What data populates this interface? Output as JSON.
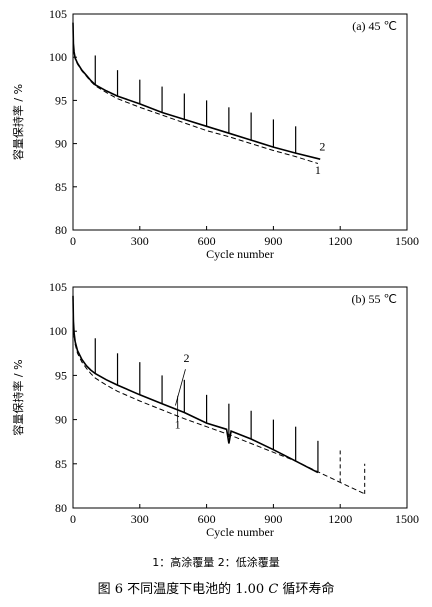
{
  "chart_data": [
    {
      "type": "line",
      "title": "(a) 45 ℃",
      "xlabel": "Cycle number",
      "ylabel": "容量保持率 / %",
      "xlim": [
        0,
        1500
      ],
      "ylim": [
        80,
        105
      ],
      "x_ticks": [
        "0",
        "300",
        "600",
        "900",
        "1200",
        "1500"
      ],
      "y_ticks": [
        "80",
        "85",
        "90",
        "95",
        "100",
        "105"
      ],
      "series": [
        {
          "name": "1",
          "style": "dashed",
          "x": [
            0,
            2,
            5,
            10,
            20,
            40,
            60,
            80,
            100,
            150,
            200,
            300,
            400,
            500,
            600,
            700,
            800,
            900,
            1000,
            1100
          ],
          "y": [
            104.0,
            101.5,
            100.5,
            99.8,
            99.2,
            98.4,
            97.8,
            97.2,
            96.7,
            95.9,
            95.2,
            94.2,
            93.3,
            92.4,
            91.5,
            90.8,
            90.0,
            89.2,
            88.5,
            87.7
          ]
        },
        {
          "name": "2",
          "style": "solid",
          "x": [
            0,
            2,
            5,
            10,
            20,
            40,
            60,
            80,
            100,
            150,
            200,
            300,
            400,
            500,
            600,
            700,
            800,
            900,
            1000,
            1110
          ],
          "y": [
            104.0,
            101.6,
            100.6,
            99.9,
            99.3,
            98.5,
            97.9,
            97.3,
            96.8,
            96.1,
            95.5,
            94.6,
            93.6,
            92.8,
            92.0,
            91.2,
            90.4,
            89.6,
            88.9,
            88.2
          ]
        }
      ],
      "spikes": [
        {
          "x": 100,
          "from": 96.8,
          "to": 100.2
        },
        {
          "x": 200,
          "from": 95.5,
          "to": 98.5
        },
        {
          "x": 300,
          "from": 94.6,
          "to": 97.4
        },
        {
          "x": 400,
          "from": 93.6,
          "to": 96.6
        },
        {
          "x": 500,
          "from": 92.8,
          "to": 95.8
        },
        {
          "x": 600,
          "from": 92.0,
          "to": 95.0
        },
        {
          "x": 700,
          "from": 91.2,
          "to": 94.2
        },
        {
          "x": 800,
          "from": 90.4,
          "to": 93.6
        },
        {
          "x": 900,
          "from": 89.6,
          "to": 92.8
        },
        {
          "x": 1000,
          "from": 88.9,
          "to": 92.0
        }
      ],
      "labels": [
        {
          "text": "1",
          "x": 1100,
          "y": 86.5
        },
        {
          "text": "2",
          "x": 1120,
          "y": 89.2
        }
      ]
    },
    {
      "type": "line",
      "title": "(b) 55 ℃",
      "xlabel": "Cycle number",
      "ylabel": "容量保持率 / %",
      "xlim": [
        0,
        1500
      ],
      "ylim": [
        80,
        105
      ],
      "x_ticks": [
        "0",
        "300",
        "600",
        "900",
        "1200",
        "1500"
      ],
      "y_ticks": [
        "80",
        "85",
        "90",
        "95",
        "100",
        "105"
      ],
      "series": [
        {
          "name": "1",
          "style": "dashed",
          "x": [
            0,
            2,
            5,
            10,
            20,
            40,
            60,
            80,
            100,
            150,
            200,
            300,
            400,
            500,
            600,
            700,
            800,
            900,
            1000,
            1100,
            1200,
            1310
          ],
          "y": [
            104.0,
            101.0,
            99.5,
            98.5,
            97.5,
            96.5,
            95.8,
            95.2,
            94.7,
            93.9,
            93.2,
            92.1,
            91.1,
            90.1,
            89.2,
            88.3,
            87.3,
            86.3,
            85.3,
            84.1,
            82.9,
            81.6
          ]
        },
        {
          "name": "2",
          "style": "solid",
          "x": [
            0,
            2,
            5,
            10,
            20,
            40,
            60,
            80,
            100,
            150,
            200,
            300,
            400,
            500,
            600,
            690,
            700,
            710,
            800,
            900,
            1000,
            1100
          ],
          "y": [
            104.0,
            101.2,
            99.8,
            98.8,
            97.8,
            96.8,
            96.1,
            95.6,
            95.2,
            94.5,
            93.9,
            92.8,
            91.8,
            90.8,
            89.6,
            88.9,
            87.3,
            88.7,
            87.8,
            86.6,
            85.3,
            84.0
          ]
        }
      ],
      "spikes": [
        {
          "x": 100,
          "from": 95.2,
          "to": 99.2
        },
        {
          "x": 200,
          "from": 93.9,
          "to": 97.5
        },
        {
          "x": 300,
          "from": 92.8,
          "to": 96.5
        },
        {
          "x": 400,
          "from": 91.8,
          "to": 95.0
        },
        {
          "x": 500,
          "from": 90.8,
          "to": 94.5
        },
        {
          "x": 600,
          "from": 89.6,
          "to": 92.8
        },
        {
          "x": 700,
          "from": 88.0,
          "to": 91.8
        },
        {
          "x": 800,
          "from": 87.8,
          "to": 91.0
        },
        {
          "x": 900,
          "from": 86.6,
          "to": 90.0
        },
        {
          "x": 1000,
          "from": 85.3,
          "to": 89.2
        },
        {
          "x": 1100,
          "from": 84.0,
          "to": 87.6
        }
      ],
      "dashed_spikes": [
        {
          "x": 1200,
          "from": 82.9,
          "to": 86.5
        },
        {
          "x": 1310,
          "from": 81.6,
          "to": 85.0
        }
      ],
      "labels": [
        {
          "text": "1",
          "x": 470,
          "y": 89.0
        },
        {
          "text": "2",
          "x": 510,
          "y": 96.5
        }
      ],
      "arrows": [
        {
          "text_ref": "1",
          "from": [
            470,
            89.8
          ],
          "to": [
            470,
            92.7
          ]
        },
        {
          "text_ref": "2",
          "from": [
            505,
            95.7
          ],
          "to": [
            460,
            91.6
          ]
        }
      ]
    }
  ],
  "legend": "1：高涂覆量    2：低涂覆量",
  "caption": {
    "prefix": "图 6    不同温度下电池的 1.00 ",
    "italic": "C",
    "suffix": " 循环寿命"
  }
}
